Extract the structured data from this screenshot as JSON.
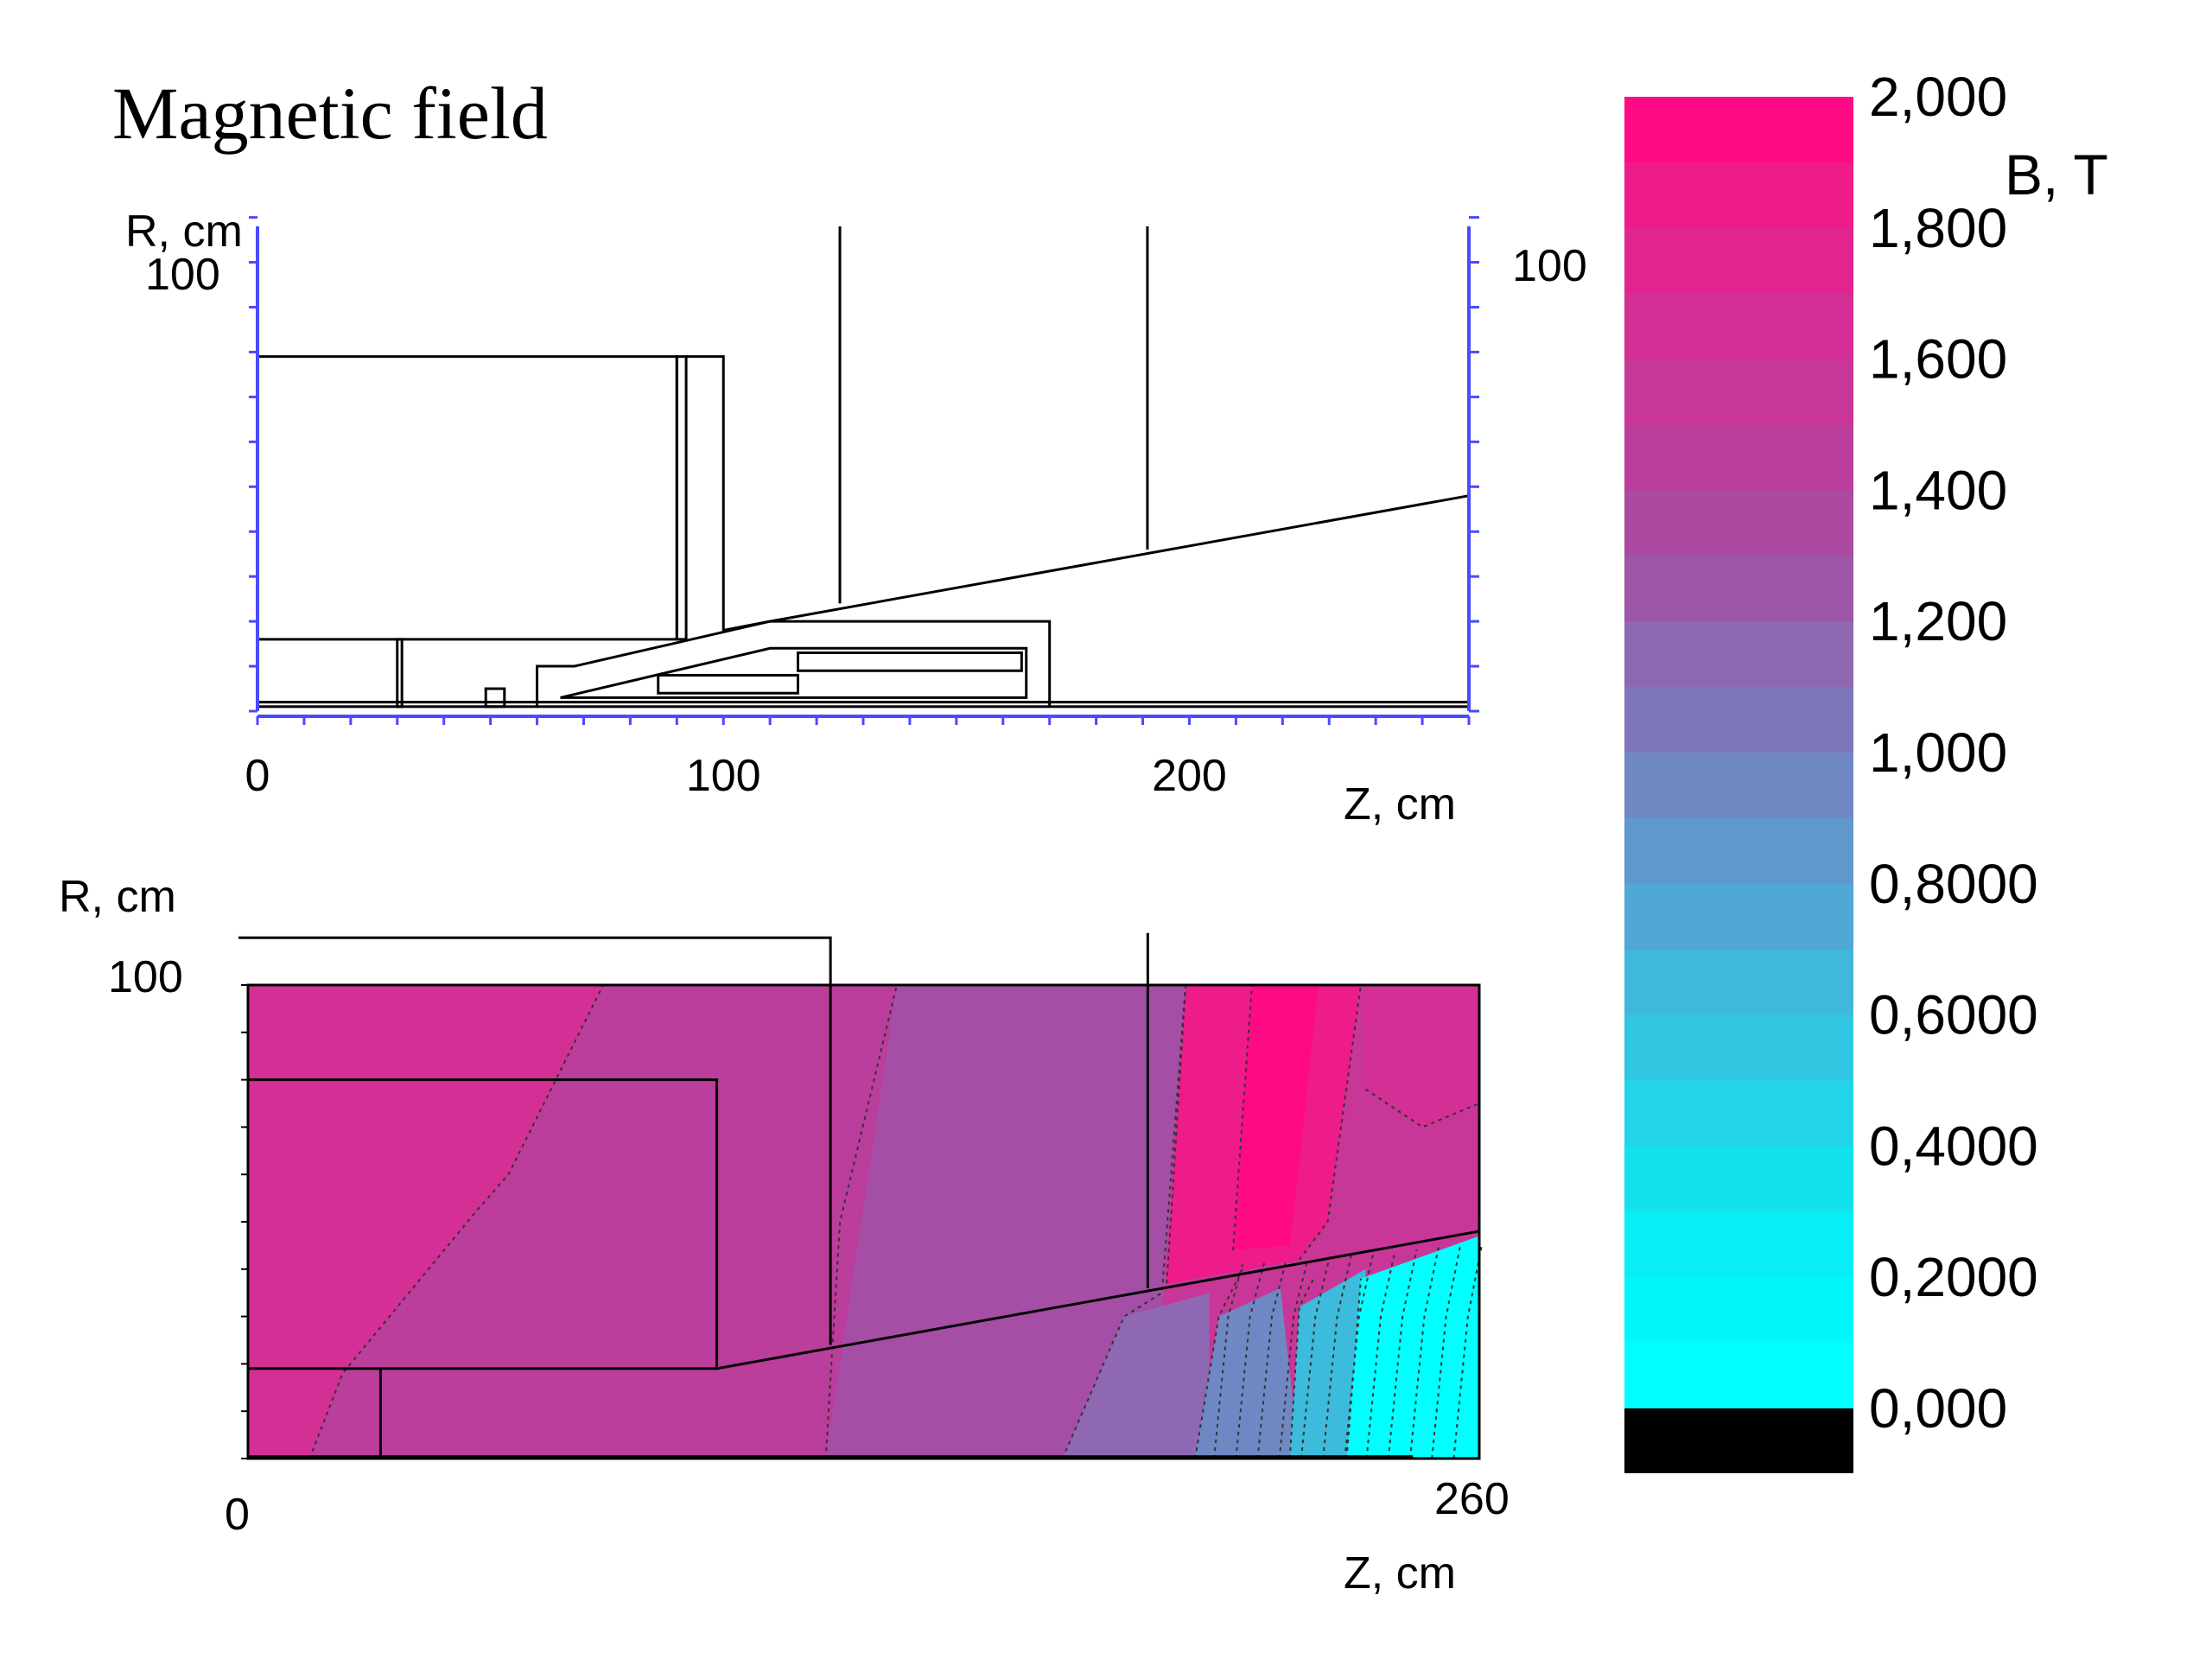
{
  "title": "Magnetic field",
  "chart_data": [
    {
      "type": "diagram",
      "name": "geometry",
      "xlabel": "Z, cm",
      "ylabel": "R, cm",
      "xlim": [
        0,
        260
      ],
      "ylim": [
        0,
        105
      ],
      "x_ticks": [
        "0",
        "100",
        "200"
      ],
      "y_tick_left": "100",
      "y_tick_right": "100",
      "outline": [
        {
          "kind": "rect",
          "x0": 0,
          "y0": 16,
          "x1": 90,
          "y1": 79
        },
        {
          "kind": "rect",
          "x0": 90,
          "y0": 16,
          "x1": 92,
          "y1": 79
        },
        {
          "kind": "path",
          "pts": [
            [
              92,
              79
            ],
            [
              100,
              79
            ],
            [
              100,
              18
            ],
            [
              110,
              20
            ],
            [
              260,
              48
            ]
          ]
        },
        {
          "kind": "line",
          "x0": 125,
          "y0": 24,
          "x1": 125,
          "y1": 108
        },
        {
          "kind": "line",
          "x0": 191,
          "y0": 36,
          "x1": 191,
          "y1": 108
        },
        {
          "kind": "rect",
          "x0": 30,
          "y0": 1,
          "x1": 31,
          "y1": 16
        },
        {
          "kind": "rect",
          "x0": 0,
          "y0": 1,
          "x1": 260,
          "y1": 2
        },
        {
          "kind": "rect",
          "x0": 49,
          "y0": 1,
          "x1": 53,
          "y1": 5
        },
        {
          "kind": "path",
          "pts": [
            [
              60,
              1
            ],
            [
              60,
              10
            ],
            [
              68,
              10
            ],
            [
              110,
              20
            ],
            [
              170,
              20
            ],
            [
              170,
              1
            ]
          ]
        },
        {
          "kind": "path",
          "pts": [
            [
              65,
              3
            ],
            [
              110,
              14
            ],
            [
              165,
              14
            ],
            [
              165,
              3
            ],
            [
              65,
              3
            ]
          ]
        },
        {
          "kind": "rect",
          "x0": 116,
          "y0": 9,
          "x1": 164,
          "y1": 13
        },
        {
          "kind": "rect",
          "x0": 86,
          "y0": 4,
          "x1": 116,
          "y1": 8
        }
      ]
    },
    {
      "type": "heatmap",
      "name": "field-map",
      "xlabel": "Z, cm",
      "ylabel": "R, cm",
      "xlim": [
        0,
        260
      ],
      "ylim": [
        0,
        100
      ],
      "x_ticks": [
        "0",
        "260"
      ],
      "y_tick": "100",
      "colorbar": {
        "label": "B, T",
        "ticks": [
          "2,000",
          "1,800",
          "1,600",
          "1,400",
          "1,200",
          "1,000",
          "0,8000",
          "0,6000",
          "0,4000",
          "0,2000",
          "0,000"
        ],
        "levels": [
          {
            "value": 1.9,
            "color": "#ff0a85"
          },
          {
            "value": 1.8,
            "color": "#ee1b8b"
          },
          {
            "value": 1.7,
            "color": "#e02590"
          },
          {
            "value": 1.6,
            "color": "#d32f94"
          },
          {
            "value": 1.5,
            "color": "#c83698"
          },
          {
            "value": 1.4,
            "color": "#bb3d9c"
          },
          {
            "value": 1.3,
            "color": "#ac4aa2"
          },
          {
            "value": 1.2,
            "color": "#9e56a8"
          },
          {
            "value": 1.1,
            "color": "#8e68b2"
          },
          {
            "value": 1.0,
            "color": "#7e78bb"
          },
          {
            "value": 0.9,
            "color": "#6f88c4"
          },
          {
            "value": 0.8,
            "color": "#5f98cd"
          },
          {
            "value": 0.7,
            "color": "#50a8d4"
          },
          {
            "value": 0.6,
            "color": "#40b8dc"
          },
          {
            "value": 0.5,
            "color": "#31c6e2"
          },
          {
            "value": 0.4,
            "color": "#22d4e8"
          },
          {
            "value": 0.3,
            "color": "#14e1ee"
          },
          {
            "value": 0.2,
            "color": "#09eef4"
          },
          {
            "value": 0.1,
            "color": "#00f8fa"
          },
          {
            "value": 0.0,
            "color": "#00ffff"
          }
        ],
        "zero_color": "#000000"
      },
      "regions": [
        {
          "color": "#d42f94",
          "pts": [
            [
              0,
              0
            ],
            [
              0,
              100
            ],
            [
              75,
              100
            ],
            [
              55,
              60
            ],
            [
              48,
              52
            ],
            [
              20,
              18
            ],
            [
              13,
              0
            ]
          ]
        },
        {
          "color": "#bb3d9c",
          "pts": [
            [
              13,
              0
            ],
            [
              20,
              18
            ],
            [
              48,
              52
            ],
            [
              55,
              60
            ],
            [
              75,
              100
            ],
            [
              137,
              100
            ],
            [
              122,
              0
            ]
          ]
        },
        {
          "color": "#a44ea6",
          "pts": [
            [
              122,
              0
            ],
            [
              137,
              100
            ],
            [
              198,
              100
            ],
            [
              193,
              30
            ],
            [
              180,
              0
            ]
          ]
        },
        {
          "color": "#8e68b2",
          "pts": [
            [
              172,
              0
            ],
            [
              185,
              30
            ],
            [
              203,
              35
            ],
            [
              203,
              0
            ]
          ]
        },
        {
          "color": "#6f88c4",
          "pts": [
            [
              200,
              0
            ],
            [
              205,
              30
            ],
            [
              218,
              36
            ],
            [
              222,
              0
            ]
          ]
        },
        {
          "color": "#3cbbdc",
          "pts": [
            [
              220,
              0
            ],
            [
              222,
              32
            ],
            [
              236,
              40
            ],
            [
              236,
              0
            ]
          ]
        },
        {
          "color": "#00ffff",
          "pts": [
            [
              232,
              0
            ],
            [
              235,
              38
            ],
            [
              260,
              47
            ],
            [
              260,
              0
            ]
          ]
        },
        {
          "color": "#ee1b8b",
          "pts": [
            [
              194,
              37
            ],
            [
              198,
              100
            ],
            [
              235,
              100
            ],
            [
              228,
              50
            ],
            [
              222,
              42
            ]
          ]
        },
        {
          "color": "#ff0a85",
          "pts": [
            [
              208,
              44
            ],
            [
              212,
              100
            ],
            [
              226,
              100
            ],
            [
              222,
              62
            ],
            [
              220,
              45
            ]
          ]
        },
        {
          "color": "#d42f94",
          "pts": [
            [
              235,
              100
            ],
            [
              260,
              100
            ],
            [
              260,
              75
            ],
            [
              248,
              70
            ],
            [
              236,
              78
            ]
          ]
        }
      ],
      "outline": [
        {
          "kind": "rect",
          "x0": 0,
          "y0": 19,
          "x1": 99,
          "y1": 80
        },
        {
          "kind": "line",
          "x0": 28,
          "y0": 0,
          "x1": 28,
          "y1": 19
        },
        {
          "kind": "path",
          "pts": [
            [
              99,
              19
            ],
            [
              260,
              48
            ]
          ]
        },
        {
          "kind": "path",
          "pts": [
            [
              -2,
              110
            ],
            [
              123,
              110
            ],
            [
              123,
              24
            ]
          ]
        },
        {
          "kind": "line",
          "x0": 190,
          "y0": 36,
          "x1": 190,
          "y1": 111
        },
        {
          "kind": "line",
          "x0": 0,
          "y0": 0.4,
          "x1": 246,
          "y1": 0.4
        }
      ]
    }
  ]
}
